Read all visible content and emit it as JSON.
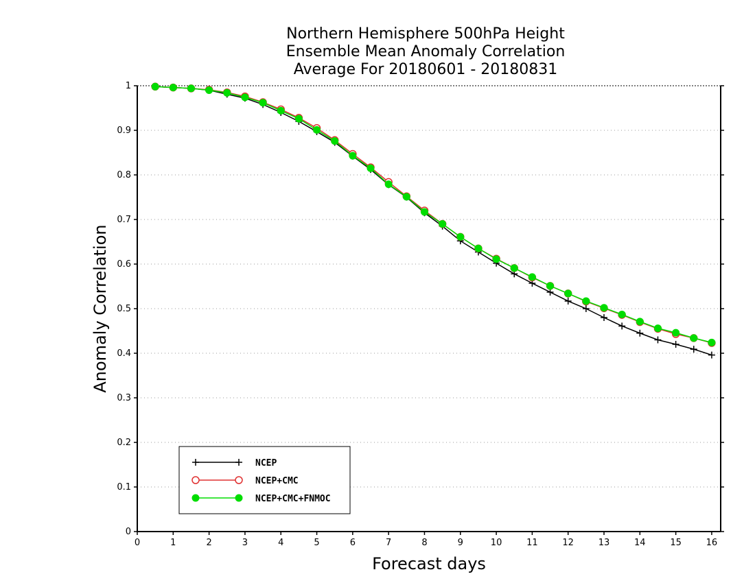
{
  "chart_data": {
    "type": "line",
    "title": [
      "Northern Hemisphere 500hPa Height",
      "Ensemble Mean Anomaly Correlation",
      "Average For 20180601 - 20180831"
    ],
    "xlabel": "Forecast days",
    "ylabel": "Anomaly Correlation",
    "xlim": [
      0,
      16.25
    ],
    "ylim": [
      0,
      1
    ],
    "x_ticks": [
      "0",
      "1",
      "2",
      "3",
      "4",
      "5",
      "6",
      "7",
      "8",
      "9",
      "10",
      "11",
      "12",
      "13",
      "14",
      "15",
      "16"
    ],
    "y_ticks": [
      "0",
      "0.1",
      "0.2",
      "0.3",
      "0.4",
      "0.5",
      "0.6",
      "0.7",
      "0.8",
      "0.9",
      "1"
    ],
    "grid": "horizontal dotted",
    "legend_position": "lower-left",
    "x": [
      0.5,
      1,
      1.5,
      2,
      2.5,
      3,
      3.5,
      4,
      4.5,
      5,
      5.5,
      6,
      6.5,
      7,
      7.5,
      8,
      8.5,
      9,
      9.5,
      10,
      10.5,
      11,
      11.5,
      12,
      12.5,
      13,
      13.5,
      14,
      14.5,
      15,
      15.5,
      16
    ],
    "series": [
      {
        "name": "NCEP",
        "color": "#000000",
        "marker": "plus",
        "values": [
          0.998,
          0.996,
          0.994,
          0.99,
          0.981,
          0.972,
          0.958,
          0.94,
          0.92,
          0.897,
          0.873,
          0.842,
          0.812,
          0.778,
          0.75,
          0.715,
          0.685,
          0.652,
          0.627,
          0.602,
          0.578,
          0.557,
          0.537,
          0.517,
          0.5,
          0.48,
          0.461,
          0.445,
          0.43,
          0.42,
          0.409,
          0.396
        ]
      },
      {
        "name": "NCEP+CMC",
        "color": "#e03030",
        "marker": "open-circle",
        "values": [
          0.998,
          0.996,
          0.994,
          0.991,
          0.985,
          0.976,
          0.963,
          0.947,
          0.928,
          0.905,
          0.878,
          0.847,
          0.817,
          0.784,
          0.752,
          0.72,
          0.69,
          0.661,
          0.635,
          0.612,
          0.591,
          0.57,
          0.551,
          0.534,
          0.516,
          0.501,
          0.486,
          0.47,
          0.455,
          0.443,
          0.434,
          0.423
        ]
      },
      {
        "name": "NCEP+CMC+FNMOC",
        "color": "#00dd00",
        "marker": "filled-circle",
        "values": [
          0.998,
          0.996,
          0.994,
          0.99,
          0.984,
          0.974,
          0.962,
          0.944,
          0.926,
          0.901,
          0.876,
          0.843,
          0.815,
          0.779,
          0.751,
          0.717,
          0.69,
          0.661,
          0.635,
          0.611,
          0.591,
          0.571,
          0.551,
          0.534,
          0.517,
          0.502,
          0.487,
          0.471,
          0.456,
          0.446,
          0.434,
          0.424
        ]
      }
    ]
  }
}
